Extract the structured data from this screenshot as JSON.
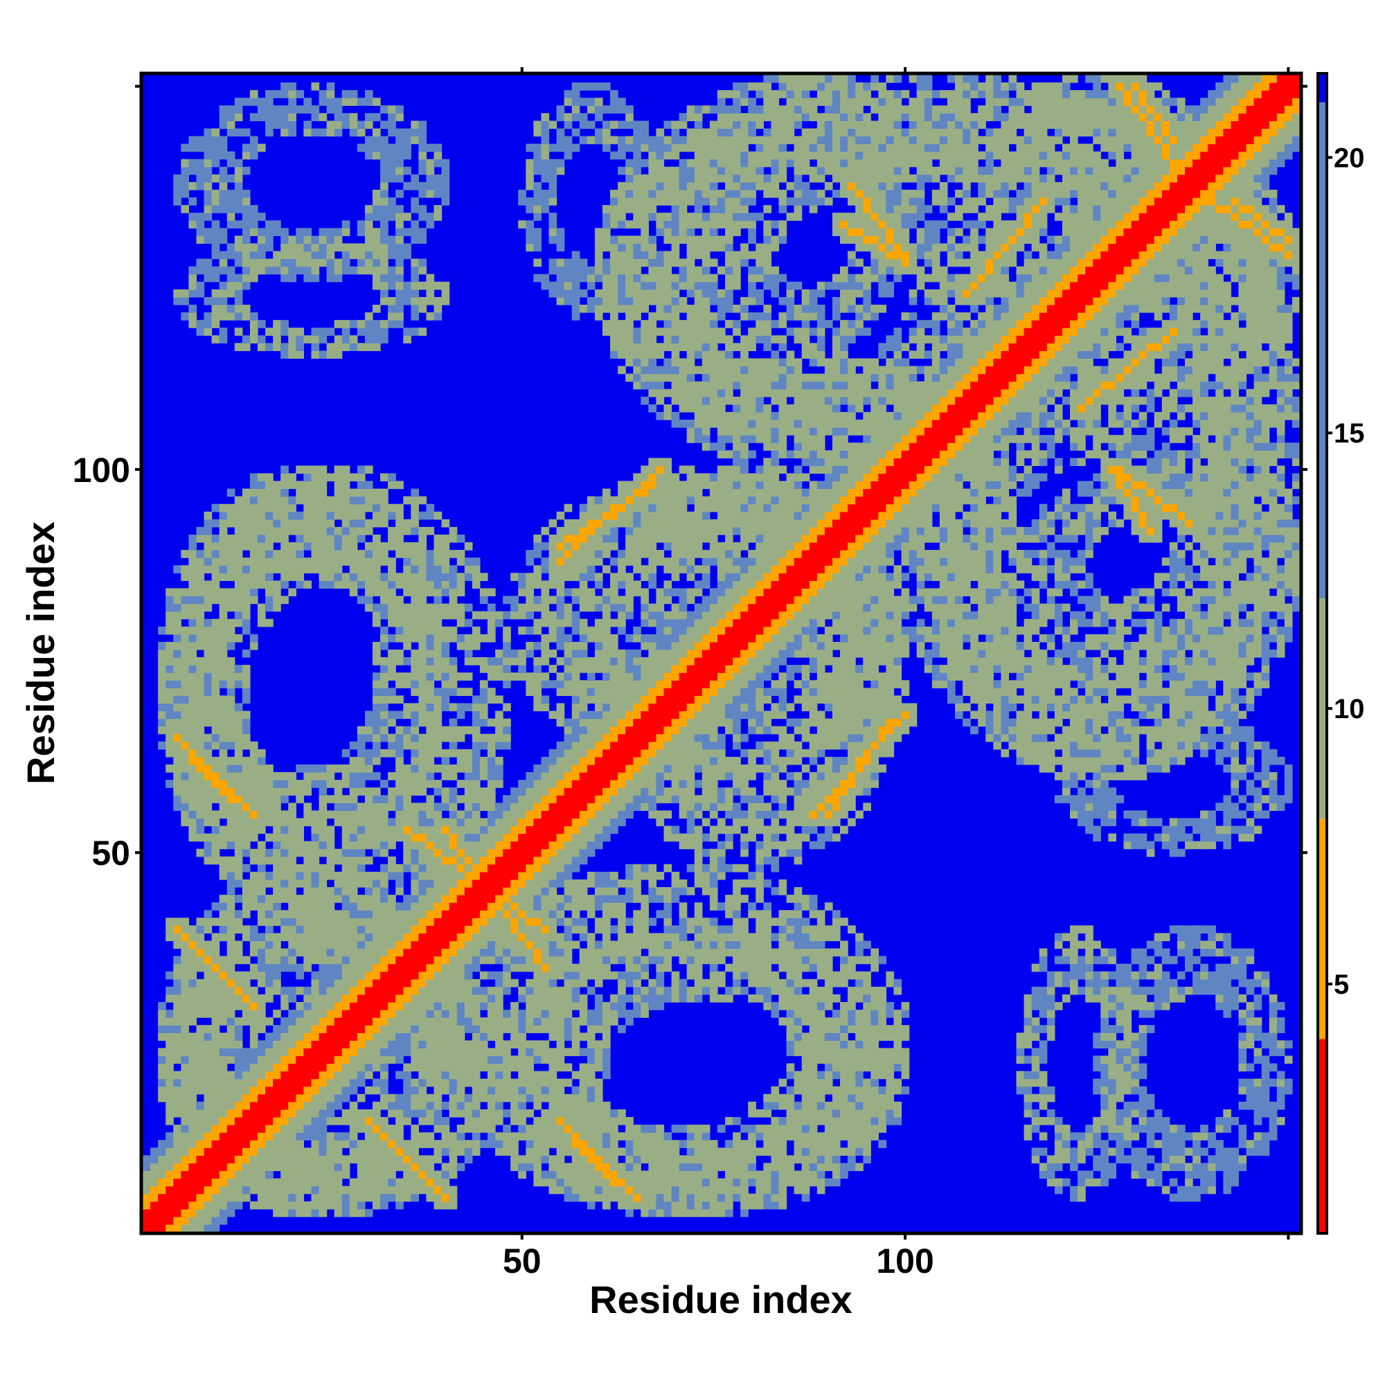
{
  "chart_data": {
    "type": "heatmap",
    "title": "",
    "xlabel": "Residue index",
    "ylabel": "Residue index",
    "n_residues": 151,
    "xlim": [
      1,
      151
    ],
    "ylim": [
      1,
      151
    ],
    "x_ticks": [
      {
        "value": 50,
        "label": "50"
      },
      {
        "value": 100,
        "label": "100"
      },
      {
        "value": 150,
        "label": ""
      }
    ],
    "y_ticks": [
      {
        "value": 50,
        "label": "50"
      },
      {
        "value": 100,
        "label": "100"
      },
      {
        "value": 150,
        "label": ""
      }
    ],
    "colorbar": {
      "range": [
        0.5,
        21.5
      ],
      "ticks": [
        {
          "value": 5,
          "label": "5"
        },
        {
          "value": 10,
          "label": "10"
        },
        {
          "value": 15,
          "label": "15"
        },
        {
          "value": 20,
          "label": "20"
        }
      ],
      "colors": [
        {
          "from": 0.5,
          "to": 4.0,
          "color": "#ff0000"
        },
        {
          "from": 4.0,
          "to": 8.0,
          "color": "#ffa500"
        },
        {
          "from": 8.0,
          "to": 12.0,
          "color": "#9aae86"
        },
        {
          "from": 12.0,
          "to": 21.0,
          "color": "#5f86c3"
        },
        {
          "from": 21.0,
          "to": 21.5,
          "color": "#0000f0"
        }
      ]
    },
    "contact_regions": [
      {
        "x": [
          40,
          53
        ],
        "y": [
          35,
          53
        ],
        "orientation": "anti",
        "value": 6
      },
      {
        "x": [
          5,
          15
        ],
        "y": [
          55,
          65
        ],
        "orientation": "anti",
        "value": 6
      },
      {
        "x": [
          5,
          15
        ],
        "y": [
          30,
          40
        ],
        "orientation": "anti",
        "value": 6
      },
      {
        "x": [
          30,
          37
        ],
        "y": [
          8,
          15
        ],
        "orientation": "anti",
        "value": 6
      },
      {
        "x": [
          57,
          62
        ],
        "y": [
          7,
          12
        ],
        "orientation": "anti",
        "value": 6
      },
      {
        "x": [
          55,
          67
        ],
        "y": [
          90,
          98
        ],
        "orientation": "parallel",
        "value": 6
      },
      {
        "x": [
          88,
          100
        ],
        "y": [
          55,
          68
        ],
        "orientation": "parallel",
        "value": 6
      },
      {
        "x": [
          108,
          118
        ],
        "y": [
          123,
          135
        ],
        "orientation": "parallel",
        "value": 7
      },
      {
        "x": [
          128,
          135
        ],
        "y": [
          140,
          150
        ],
        "orientation": "anti",
        "value": 6
      },
      {
        "x": [
          128,
          137
        ],
        "y": [
          93,
          100
        ],
        "orientation": "anti",
        "value": 6
      },
      {
        "x": [
          143,
          150
        ],
        "y": [
          130,
          135
        ],
        "orientation": "anti",
        "value": 6
      },
      {
        "x": [
          92,
          100
        ],
        "y": [
          127,
          132
        ],
        "orientation": "anti",
        "value": 7
      }
    ],
    "neighbor_regions": [
      {
        "x": [
          3,
          40
        ],
        "y": [
          48,
          100
        ],
        "value": 11
      },
      {
        "x": [
          3,
          40
        ],
        "y": [
          3,
          48
        ],
        "value": 11
      },
      {
        "x": [
          40,
          100
        ],
        "y": [
          3,
          48
        ],
        "value": 11
      },
      {
        "x": [
          60,
          100
        ],
        "y": [
          48,
          100
        ],
        "value": 11
      },
      {
        "x": [
          100,
          151
        ],
        "y": [
          60,
          151
        ],
        "value": 11
      },
      {
        "x": [
          60,
          115
        ],
        "y": [
          100,
          151
        ],
        "value": 12
      },
      {
        "x": [
          5,
          40
        ],
        "y": [
          115,
          130
        ],
        "value": 12
      },
      {
        "x": [
          125,
          150
        ],
        "y": [
          5,
          40
        ],
        "value": 14
      },
      {
        "x": [
          120,
          150
        ],
        "y": [
          50,
          68
        ],
        "value": 14
      },
      {
        "x": [
          115,
          150
        ],
        "y": [
          75,
          100
        ],
        "value": 13
      }
    ]
  }
}
